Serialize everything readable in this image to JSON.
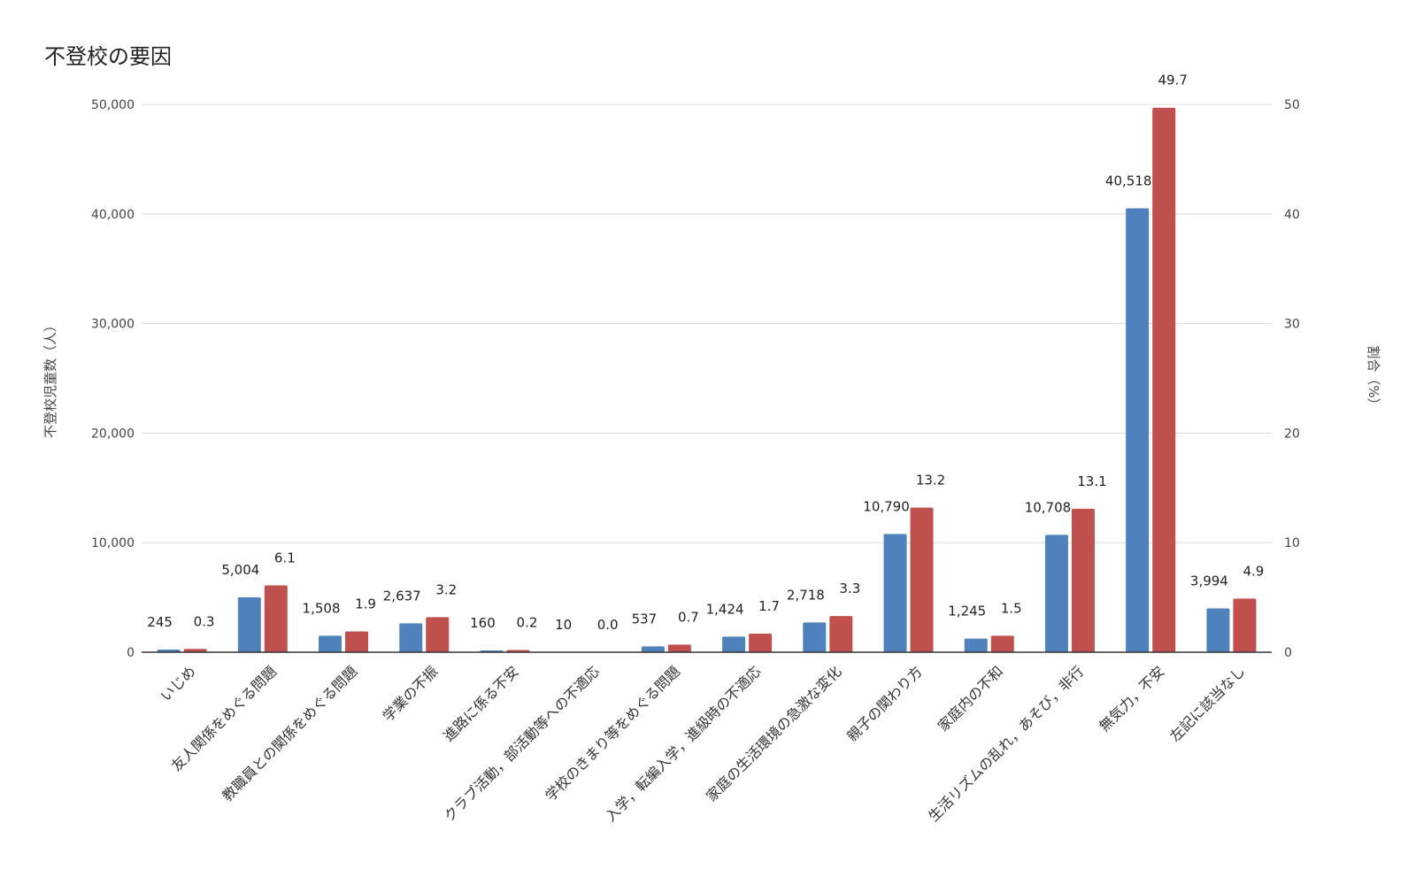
{
  "chart_data": {
    "type": "bar",
    "title": "不登校の要因",
    "ylabel": "不登校児童数（人）",
    "y2label": "割合（%）",
    "ylim": [
      0,
      50000
    ],
    "y2lim": [
      0,
      50
    ],
    "yticks": [
      "0",
      "10,000",
      "20,000",
      "30,000",
      "40,000",
      "50,000"
    ],
    "y2ticks": [
      "0",
      "10",
      "20",
      "30",
      "40",
      "50"
    ],
    "grid": true,
    "categories": [
      "いじめ",
      "友人関係をめぐる問題",
      "教職員との関係をめぐる問題",
      "学業の不振",
      "進路に係る不安",
      "クラブ活動，部活動等への不適応",
      "学校のきまり等をめぐる問題",
      "入学，転編入学，進級時の不適応",
      "家庭の生活環境の急激な変化",
      "親子の関わり方",
      "家庭内の不和",
      "生活リズムの乱れ，あそび，非行",
      "無気力，不安",
      "左記に該当なし"
    ],
    "series": [
      {
        "axis": "left",
        "color": "#4f81bd",
        "values": [
          245,
          5004,
          1508,
          2637,
          160,
          10,
          537,
          1424,
          2718,
          10790,
          1245,
          10708,
          40518,
          3994
        ],
        "labels": [
          "245",
          "5,004",
          "1,508",
          "2,637",
          "160",
          "10",
          "537",
          "1,424",
          "2,718",
          "10,790",
          "1,245",
          "10,708",
          "40,518",
          "3,994"
        ]
      },
      {
        "axis": "right",
        "color": "#c0504d",
        "values": [
          0.3,
          6.1,
          1.9,
          3.2,
          0.2,
          0.0,
          0.7,
          1.7,
          3.3,
          13.2,
          1.5,
          13.1,
          49.7,
          4.9
        ],
        "labels": [
          "0.3",
          "6.1",
          "1.9",
          "3.2",
          "0.2",
          "0.0",
          "0.7",
          "1.7",
          "3.3",
          "13.2",
          "1.5",
          "13.1",
          "49.7",
          "4.9"
        ]
      }
    ]
  }
}
